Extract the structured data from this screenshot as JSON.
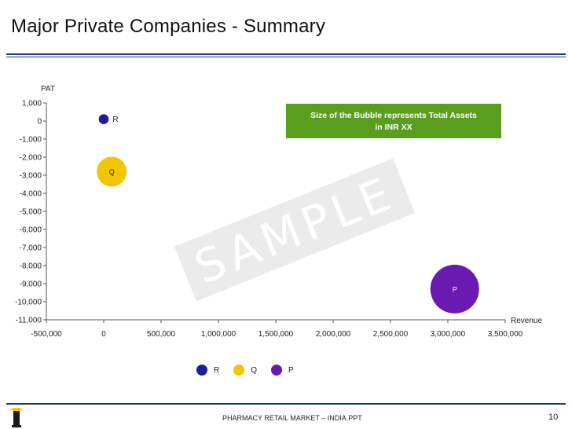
{
  "slide": {
    "title": "Major Private Companies - Summary",
    "watermark": "SAMPLE",
    "footer": "PHARMACY RETAIL MARKET – INDIA.PPT",
    "page_number": "10"
  },
  "colors": {
    "accent": "#1f3a78",
    "note_box": "#5a9e1f",
    "R": "#1b1f9c",
    "Q": "#f2c500",
    "P": "#6a1ab0"
  },
  "chart_data": {
    "type": "bubble",
    "title": "",
    "xlabel": "Revenue",
    "ylabel": "PAT",
    "xlim": [
      -500000,
      3500000
    ],
    "ylim": [
      -11000,
      1000
    ],
    "x_ticks": [
      -500000,
      0,
      500000,
      1000000,
      1500000,
      2000000,
      2500000,
      3000000,
      3500000
    ],
    "x_tick_labels": [
      "-500,000",
      "0",
      "500,000",
      "1,000,000",
      "1,500,000",
      "2,000,000",
      "2,500,000",
      "3,000,000",
      "3,500,000"
    ],
    "y_ticks": [
      1000,
      0,
      -1000,
      -2000,
      -3000,
      -4000,
      -5000,
      -6000,
      -7000,
      -8000,
      -9000,
      -10000,
      -11000
    ],
    "y_tick_labels": [
      "1,000",
      "0",
      "-1,000",
      "-2,000",
      "-3,000",
      "-4,000",
      "-5,000",
      "-6,000",
      "-7,000",
      "-8,000",
      "-9,000",
      "-10,000",
      "-11,000"
    ],
    "annotation": "Size of the Bubble represents Total Assets in INR XX",
    "series": [
      {
        "name": "R",
        "x": 0,
        "y": 100,
        "size": 1,
        "label_side": "right"
      },
      {
        "name": "Q",
        "x": 70000,
        "y": -2800,
        "size": 9,
        "label_side": "center"
      },
      {
        "name": "P",
        "x": 3060000,
        "y": -9300,
        "size": 24,
        "label_side": "center"
      }
    ]
  }
}
